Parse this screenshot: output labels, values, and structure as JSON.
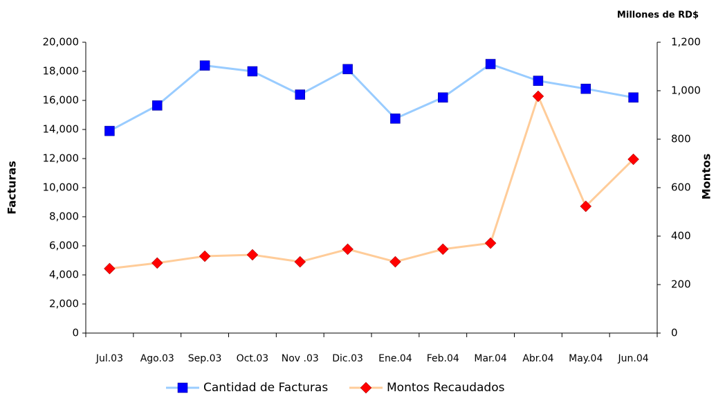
{
  "chart_data": {
    "type": "line",
    "unit_label": "Millones de RD$",
    "ylabel": "Facturas",
    "y2label": "Montos",
    "categories": [
      "Jul.03",
      "Ago.03",
      "Sep.03",
      "Oct.03",
      "Nov .03",
      "Dic.03",
      "Ene.04",
      "Feb.04",
      "Mar.04",
      "Abr.04",
      "May.04",
      "Jun.04"
    ],
    "series": [
      {
        "name": "Cantidad de Facturas",
        "color": "#99ccff",
        "marker_color": "#0000ff",
        "marker": "square",
        "values": [
          13900,
          15650,
          18400,
          18000,
          16400,
          18150,
          14750,
          16200,
          18500,
          17350,
          16800,
          16200
        ]
      },
      {
        "name": "Montos Recaudados",
        "color": "#ffcc99",
        "marker_color": "#ff0000",
        "marker": "diamond",
        "axis": "y2",
        "values": [
          266,
          289,
          317,
          323,
          294,
          346,
          294,
          346,
          371,
          977,
          523,
          717
        ]
      }
    ],
    "ylim": [
      0,
      20000
    ],
    "yticks": [
      0,
      {
        "value": 2000,
        "label": "2,000"
      },
      {
        "value": 4000,
        "label": "4,000"
      },
      {
        "value": 6000,
        "label": "6,000"
      },
      {
        "value": 8000,
        "label": "8,000"
      },
      {
        "value": 10000,
        "label": "10,000"
      },
      {
        "value": 12000,
        "label": "12,000"
      },
      {
        "value": 14000,
        "label": "14,000"
      },
      {
        "value": 16000,
        "label": "16,000"
      },
      {
        "value": 18000,
        "label": "18,000"
      },
      {
        "value": 20000,
        "label": "20,000"
      }
    ],
    "y2lim": [
      0,
      1200
    ],
    "y2ticks": [
      0,
      200,
      400,
      600,
      800,
      {
        "value": 1000,
        "label": "1,000"
      },
      {
        "value": 1200,
        "label": "1,200"
      }
    ],
    "grid": false,
    "legend": "bottom"
  }
}
